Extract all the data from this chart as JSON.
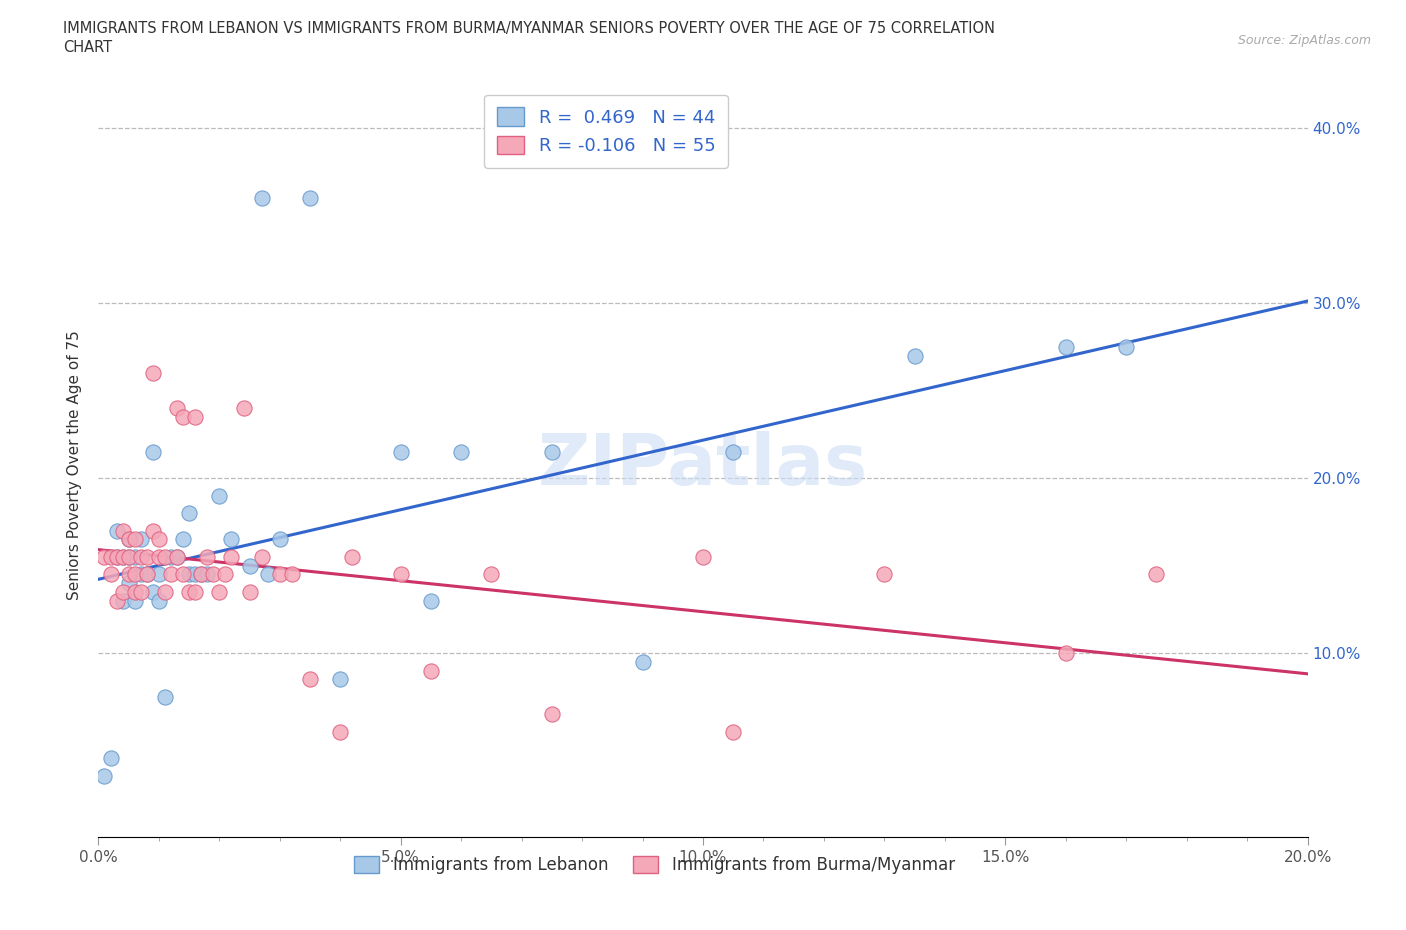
{
  "title_line1": "IMMIGRANTS FROM LEBANON VS IMMIGRANTS FROM BURMA/MYANMAR SENIORS POVERTY OVER THE AGE OF 75 CORRELATION",
  "title_line2": "CHART",
  "source": "Source: ZipAtlas.com",
  "ylabel": "Seniors Poverty Over the Age of 75",
  "xlim": [
    0.0,
    0.2
  ],
  "ylim": [
    -0.005,
    0.42
  ],
  "xtick_labels": [
    "0.0%",
    "",
    "",
    "",
    "",
    "5.0%",
    "",
    "",
    "",
    "",
    "10.0%",
    "",
    "",
    "",
    "",
    "15.0%",
    "",
    "",
    "",
    "",
    "20.0%"
  ],
  "xtick_values": [
    0.0,
    0.01,
    0.02,
    0.03,
    0.04,
    0.05,
    0.06,
    0.07,
    0.08,
    0.09,
    0.1,
    0.11,
    0.12,
    0.13,
    0.14,
    0.15,
    0.16,
    0.17,
    0.18,
    0.19,
    0.2
  ],
  "ytick_values": [
    0.1,
    0.2,
    0.3,
    0.4
  ],
  "ytick_labels": [
    "10.0%",
    "20.0%",
    "30.0%",
    "40.0%"
  ],
  "lebanon_color": "#A8C8E8",
  "burma_color": "#F4A8B8",
  "lebanon_edge": "#6699CC",
  "burma_edge": "#E06080",
  "lebanon_label": "Immigrants from Lebanon",
  "burma_label": "Immigrants from Burma/Myanmar",
  "r_lebanon": 0.469,
  "n_lebanon": 44,
  "r_burma": -0.106,
  "n_burma": 55,
  "legend_r_color": "#3366CC",
  "trendline_lebanon_color": "#3366CC",
  "trendline_burma_color": "#CC3366",
  "watermark": "ZIPatlas",
  "grid_color": "#BBBBBB",
  "lebanon_x": [
    0.001,
    0.002,
    0.003,
    0.003,
    0.004,
    0.004,
    0.005,
    0.005,
    0.005,
    0.006,
    0.006,
    0.007,
    0.007,
    0.008,
    0.009,
    0.009,
    0.01,
    0.01,
    0.011,
    0.012,
    0.013,
    0.014,
    0.015,
    0.015,
    0.016,
    0.017,
    0.018,
    0.02,
    0.022,
    0.025,
    0.027,
    0.028,
    0.03,
    0.035,
    0.04,
    0.05,
    0.055,
    0.06,
    0.075,
    0.09,
    0.105,
    0.135,
    0.16,
    0.17
  ],
  "lebanon_y": [
    0.03,
    0.04,
    0.155,
    0.17,
    0.13,
    0.155,
    0.14,
    0.155,
    0.165,
    0.13,
    0.155,
    0.145,
    0.165,
    0.145,
    0.135,
    0.215,
    0.13,
    0.145,
    0.075,
    0.155,
    0.155,
    0.165,
    0.145,
    0.18,
    0.145,
    0.145,
    0.145,
    0.19,
    0.165,
    0.15,
    0.36,
    0.145,
    0.165,
    0.36,
    0.085,
    0.215,
    0.13,
    0.215,
    0.215,
    0.095,
    0.215,
    0.27,
    0.275,
    0.275
  ],
  "burma_x": [
    0.001,
    0.002,
    0.002,
    0.003,
    0.003,
    0.004,
    0.004,
    0.004,
    0.005,
    0.005,
    0.005,
    0.006,
    0.006,
    0.006,
    0.007,
    0.007,
    0.008,
    0.008,
    0.009,
    0.009,
    0.01,
    0.01,
    0.011,
    0.011,
    0.012,
    0.013,
    0.013,
    0.014,
    0.014,
    0.015,
    0.016,
    0.016,
    0.017,
    0.018,
    0.019,
    0.02,
    0.021,
    0.022,
    0.024,
    0.025,
    0.027,
    0.03,
    0.032,
    0.035,
    0.04,
    0.042,
    0.05,
    0.055,
    0.065,
    0.075,
    0.1,
    0.105,
    0.13,
    0.16,
    0.175
  ],
  "burma_y": [
    0.155,
    0.145,
    0.155,
    0.13,
    0.155,
    0.135,
    0.155,
    0.17,
    0.145,
    0.155,
    0.165,
    0.135,
    0.145,
    0.165,
    0.135,
    0.155,
    0.145,
    0.155,
    0.17,
    0.26,
    0.155,
    0.165,
    0.135,
    0.155,
    0.145,
    0.155,
    0.24,
    0.145,
    0.235,
    0.135,
    0.235,
    0.135,
    0.145,
    0.155,
    0.145,
    0.135,
    0.145,
    0.155,
    0.24,
    0.135,
    0.155,
    0.145,
    0.145,
    0.085,
    0.055,
    0.155,
    0.145,
    0.09,
    0.145,
    0.065,
    0.155,
    0.055,
    0.145,
    0.1,
    0.145
  ]
}
